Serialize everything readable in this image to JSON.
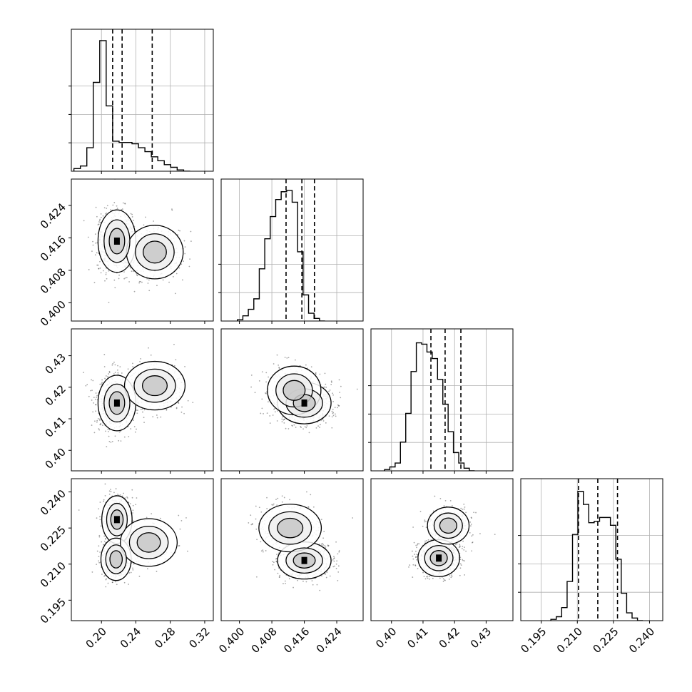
{
  "chart_data": {
    "type": "corner",
    "params": [
      {
        "range": [
          0.165,
          0.33
        ],
        "ticks": [
          0.2,
          0.24,
          0.28,
          0.32
        ],
        "tick_labels": [
          "0.20",
          "0.24",
          "0.28",
          "0.32"
        ],
        "quantiles": [
          0.213,
          0.224,
          0.259
        ],
        "hist_edges_start": 0.168,
        "hist_bin_width": 0.0075,
        "hist_counts": [
          0.02,
          0.04,
          0.18,
          0.68,
          1.0,
          0.5,
          0.23,
          0.22,
          0.22,
          0.21,
          0.18,
          0.15,
          0.11,
          0.08,
          0.05,
          0.03,
          0.01,
          0.0
        ],
        "hist_yticks": [
          0.25,
          0.5,
          0.75
        ]
      },
      {
        "range": [
          0.3955,
          0.4305
        ],
        "ticks": [
          0.4,
          0.408,
          0.416,
          0.424
        ],
        "tick_labels": [
          "0.400",
          "0.408",
          "0.416",
          "0.424"
        ],
        "quantiles": [
          0.4115,
          0.4154,
          0.4185
        ],
        "hist_edges_start": 0.3995,
        "hist_bin_width": 0.00135,
        "hist_counts": [
          0.01,
          0.04,
          0.09,
          0.17,
          0.4,
          0.63,
          0.8,
          0.93,
          0.99,
          1.0,
          0.91,
          0.53,
          0.2,
          0.06,
          0.02,
          0.0
        ],
        "hist_yticks": [
          0.25,
          0.5,
          0.75
        ]
      },
      {
        "range": [
          0.3935,
          0.4385
        ],
        "ticks": [
          0.4,
          0.41,
          0.42,
          0.43
        ],
        "tick_labels": [
          "0.40",
          "0.41",
          "0.42",
          "0.43"
        ],
        "quantiles": [
          0.4125,
          0.417,
          0.422
        ],
        "hist_edges_start": 0.3978,
        "hist_bin_width": 0.00168,
        "hist_counts": [
          0.01,
          0.03,
          0.06,
          0.22,
          0.44,
          0.76,
          0.98,
          0.97,
          0.91,
          0.86,
          0.7,
          0.51,
          0.3,
          0.14,
          0.06,
          0.02,
          0.0
        ],
        "hist_yticks": [
          0.25,
          0.5,
          0.75
        ]
      },
      {
        "range": [
          0.1865,
          0.2455
        ],
        "ticks": [
          0.195,
          0.21,
          0.225,
          0.24
        ],
        "tick_labels": [
          "0.195",
          "0.210",
          "0.225",
          "0.240"
        ],
        "quantiles": [
          0.2105,
          0.2185,
          0.2267
        ],
        "hist_edges_start": 0.199,
        "hist_bin_width": 0.00225,
        "hist_counts": [
          0.01,
          0.03,
          0.1,
          0.3,
          0.66,
          0.99,
          0.89,
          0.75,
          0.76,
          0.79,
          0.79,
          0.73,
          0.47,
          0.21,
          0.06,
          0.02,
          0.0
        ],
        "hist_yticks": [
          0.25,
          0.5,
          0.75
        ]
      }
    ],
    "pairs": [
      {
        "i": 0,
        "j": 1,
        "modes": [
          [
            0.218,
            0.4152,
            1.0
          ],
          [
            0.262,
            0.4125,
            0.45
          ]
        ],
        "sigma": [
          [
            0.01,
            0.0035
          ],
          [
            0.015,
            0.003
          ]
        ]
      },
      {
        "i": 0,
        "j": 2,
        "modes": [
          [
            0.218,
            0.415,
            1.0
          ],
          [
            0.262,
            0.4205,
            0.45
          ]
        ],
        "sigma": [
          [
            0.01,
            0.004
          ],
          [
            0.016,
            0.0035
          ]
        ]
      },
      {
        "i": 1,
        "j": 2,
        "modes": [
          [
            0.416,
            0.415,
            1.0
          ],
          [
            0.4135,
            0.419,
            0.5
          ]
        ],
        "sigma": [
          [
            0.003,
            0.003
          ],
          [
            0.003,
            0.0035
          ]
        ]
      },
      {
        "i": 0,
        "j": 3,
        "modes": [
          [
            0.218,
            0.2285,
            0.9
          ],
          [
            0.217,
            0.212,
            1.0
          ],
          [
            0.255,
            0.219,
            0.45
          ]
        ],
        "sigma": [
          [
            0.008,
            0.0045
          ],
          [
            0.008,
            0.004
          ],
          [
            0.015,
            0.0045
          ]
        ]
      },
      {
        "i": 1,
        "j": 3,
        "modes": [
          [
            0.416,
            0.2115,
            1.0
          ],
          [
            0.4125,
            0.225,
            0.6
          ]
        ],
        "sigma": [
          [
            0.003,
            0.0035
          ],
          [
            0.0035,
            0.0045
          ]
        ]
      },
      {
        "i": 2,
        "j": 3,
        "modes": [
          [
            0.415,
            0.2125,
            1.0
          ],
          [
            0.418,
            0.226,
            0.55
          ]
        ],
        "sigma": [
          [
            0.003,
            0.0035
          ],
          [
            0.003,
            0.0035
          ]
        ]
      }
    ]
  }
}
